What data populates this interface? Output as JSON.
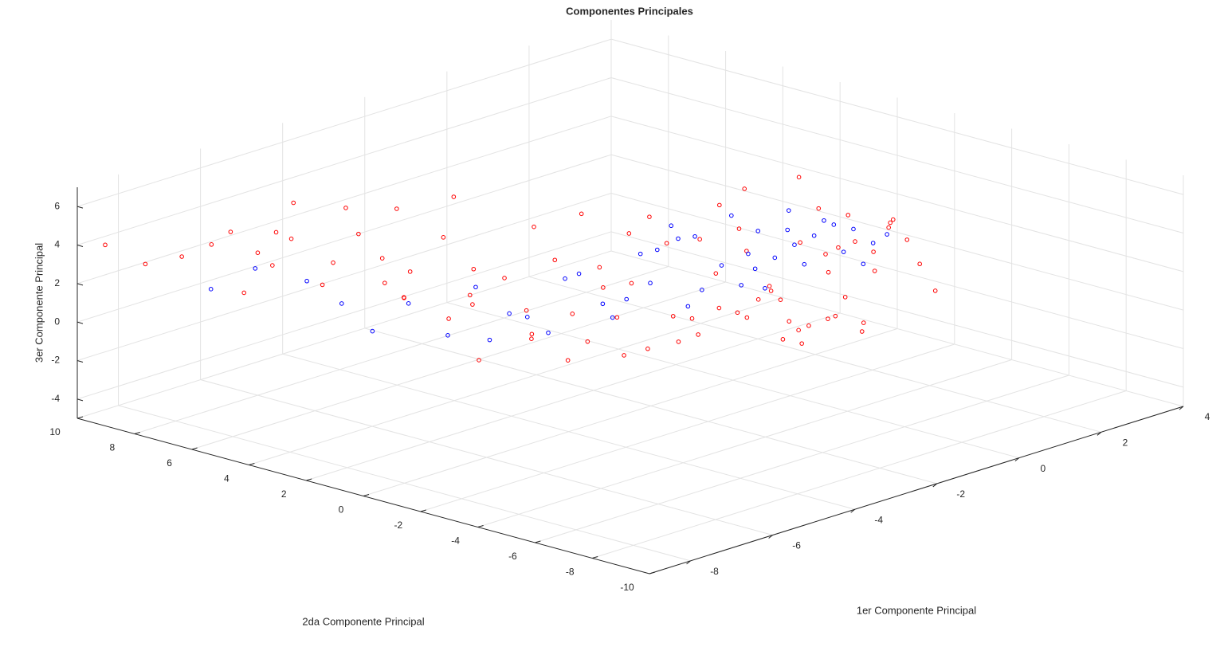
{
  "chart_data": {
    "type": "scatter",
    "title": "Componentes Principales",
    "xlabel": "1er Componente Principal",
    "ylabel": "2da Componente Principal",
    "zlabel": "3er Componente Principal",
    "xlim": [
      -9,
      4
    ],
    "ylim": [
      -10,
      10
    ],
    "zlim": [
      -5,
      7
    ],
    "xticks": [
      -8,
      -6,
      -4,
      -2,
      0,
      2,
      4
    ],
    "yticks": [
      -10,
      -8,
      -6,
      -4,
      -2,
      0,
      2,
      4,
      6,
      8,
      10
    ],
    "zticks": [
      -4,
      -2,
      0,
      2,
      4,
      6
    ],
    "grid": true,
    "series": [
      {
        "color": "#ff0000",
        "x": [
          -7.5,
          -6.8,
          -6.2,
          -7.1,
          -5.9,
          -6.5,
          -5.4,
          -4.8,
          -5.2,
          -4.5,
          -4.1,
          -3.8,
          -4.6,
          -3.5,
          -3.2,
          -2.9,
          -3.6,
          -2.5,
          -2.2,
          -2.8,
          -1.9,
          -1.6,
          -2.1,
          -1.3,
          -1.0,
          -1.5,
          -0.8,
          -0.5,
          -1.2,
          -0.3,
          0.0,
          -0.6,
          0.2,
          0.4,
          -0.2,
          0.6,
          0.8,
          0.1,
          1.0,
          1.2,
          0.5,
          1.4,
          1.6,
          0.9,
          1.8,
          0.3,
          1.1,
          1.5,
          0.7,
          1.9,
          -0.4,
          0.2,
          0.8,
          1.3,
          -0.9,
          -1.7,
          -2.4,
          -3.0,
          -3.9,
          -5.0,
          -6.0,
          -1.1,
          -0.7,
          0.0,
          0.6,
          1.2,
          1.7,
          -2.6,
          -1.4,
          -0.1,
          0.9,
          1.4,
          -3.3,
          -4.3,
          -5.6,
          -2.0,
          -0.5,
          0.4,
          1.0,
          1.6,
          -8.6,
          -7.9,
          -4.9,
          -3.4,
          -1.8,
          -0.2,
          0.7,
          1.1,
          1.3,
          2.0
        ],
        "y": [
          8.5,
          7.8,
          7.2,
          6.9,
          7.5,
          8.9,
          6.6,
          6.2,
          7.9,
          5.8,
          5.4,
          6.3,
          4.9,
          5.1,
          4.6,
          5.6,
          3.9,
          4.4,
          3.8,
          3.2,
          3.5,
          3.0,
          2.6,
          2.8,
          2.2,
          1.9,
          2.4,
          1.6,
          1.2,
          1.0,
          0.6,
          0.3,
          -0.2,
          0.1,
          -0.5,
          -0.8,
          -1.2,
          -1.6,
          -1.9,
          -2.3,
          -2.6,
          -2.9,
          -3.2,
          -1.0,
          -3.5,
          -0.9,
          -2.0,
          -2.8,
          -1.4,
          -3.8,
          -0.1,
          -0.6,
          -1.5,
          -2.4,
          0.8,
          2.1,
          3.6,
          4.8,
          5.9,
          6.8,
          8.0,
          1.4,
          0.9,
          -0.4,
          -1.1,
          -2.2,
          -3.0,
          3.3,
          1.8,
          -0.3,
          -1.7,
          -2.5,
          5.2,
          6.0,
          7.4,
          2.9,
          0.5,
          -0.7,
          -1.8,
          -3.3,
          9.6,
          9.2,
          6.5,
          4.0,
          2.5,
          0.2,
          -1.3,
          -2.1,
          -2.7,
          -4.2
        ],
        "z": [
          3.0,
          4.1,
          2.2,
          1.5,
          3.6,
          2.8,
          0.9,
          3.3,
          4.5,
          2.0,
          1.2,
          3.9,
          0.4,
          2.7,
          -0.3,
          4.2,
          1.6,
          0.2,
          2.9,
          -0.8,
          1.1,
          3.5,
          -1.2,
          0.6,
          2.4,
          -1.5,
          -0.4,
          1.8,
          3.8,
          -2.0,
          0.3,
          2.6,
          -1.8,
          1.4,
          3.2,
          -0.9,
          2.1,
          -2.3,
          0.7,
          3.7,
          -1.1,
          1.9,
          3.4,
          -2.6,
          2.5,
          -0.2,
          -1.6,
          0.8,
          -3.0,
          1.3,
          4.4,
          -0.7,
          -2.1,
          2.3,
          -1.4,
          0.1,
          -2.7,
          -1.0,
          -0.5,
          1.7,
          2.4,
          -3.2,
          -2.9,
          5.1,
          -1.9,
          -0.6,
          3.0,
          -2.2,
          -3.5,
          -1.3,
          4.0,
          -2.4,
          -1.7,
          0.5,
          3.1,
          -3.8,
          -2.5,
          -0.1,
          1.6,
          3.6,
          3.9,
          2.6,
          4.6,
          -3.3,
          -2.8,
          -1.2,
          5.6,
          2.0,
          -1.8,
          0.0
        ]
      },
      {
        "color": "#0000ff",
        "x": [
          -1.0,
          -0.5,
          0.0,
          0.4,
          0.8,
          1.2,
          -0.2,
          0.6,
          1.0,
          1.4,
          -1.5,
          -2.0,
          -0.8,
          0.2,
          0.9,
          1.6,
          -2.5,
          -3.2,
          -1.2,
          0.3,
          0.7,
          1.1,
          -0.4,
          -4.0,
          -5.5,
          -6.2,
          -3.6,
          -2.8,
          -1.8,
          -0.6,
          0.1,
          0.5,
          1.3,
          -7.0,
          -4.6,
          -2.2,
          -0.9,
          0.8,
          1.5,
          -1.4,
          -0.3,
          0.4,
          -5.0,
          -3.0,
          1.8
        ],
        "y": [
          1.8,
          1.2,
          0.4,
          -0.3,
          -1.0,
          -1.8,
          0.8,
          -0.6,
          -1.4,
          -2.2,
          2.4,
          3.0,
          1.5,
          0.0,
          -1.2,
          -2.6,
          3.6,
          4.4,
          2.0,
          -0.1,
          -0.9,
          -1.6,
          1.0,
          5.6,
          7.0,
          7.8,
          4.8,
          3.8,
          2.8,
          1.3,
          0.2,
          -0.4,
          -2.0,
          8.2,
          6.0,
          3.3,
          1.6,
          -0.8,
          -2.4,
          2.2,
          0.9,
          -0.2,
          6.5,
          4.2,
          -2.8
        ],
        "z": [
          1.5,
          2.2,
          0.8,
          2.6,
          1.9,
          3.0,
          -0.5,
          1.2,
          2.4,
          2.8,
          -1.0,
          0.4,
          1.7,
          -0.2,
          0.9,
          2.1,
          -1.5,
          0.2,
          -0.8,
          1.4,
          2.7,
          3.2,
          -1.3,
          -0.6,
          1.0,
          1.8,
          -2.2,
          -1.2,
          0.6,
          2.9,
          3.4,
          -0.4,
          1.6,
          1.1,
          -1.8,
          -2.4,
          0.0,
          3.6,
          1.0,
          -1.7,
          2.3,
          0.6,
          -0.3,
          -2.6,
          2.5
        ]
      }
    ]
  }
}
